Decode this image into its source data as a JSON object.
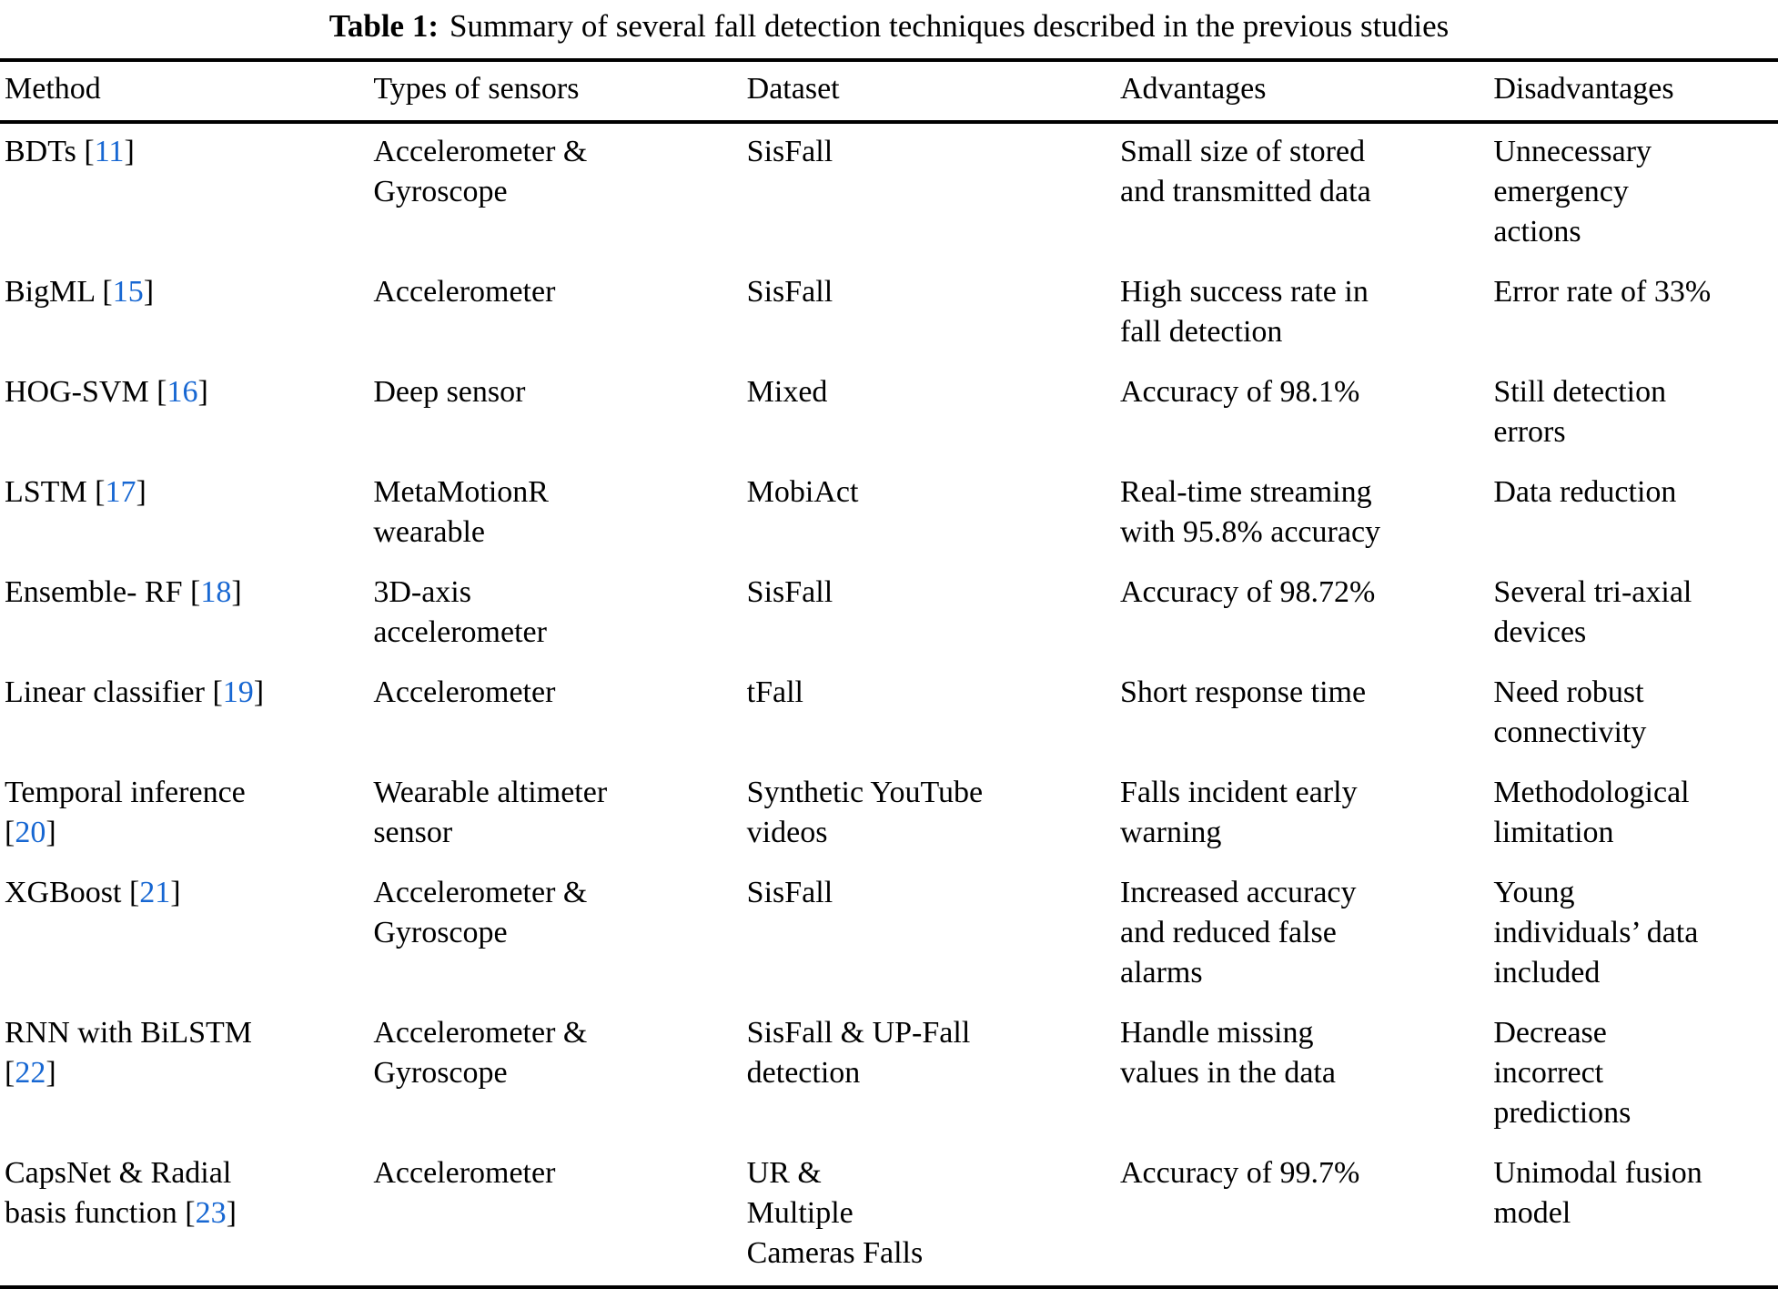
{
  "colors": {
    "citation_link": "#1767d2",
    "text": "#000000",
    "rule": "#000000",
    "background": "#ffffff"
  },
  "caption": {
    "label": "Table 1:",
    "text": "Summary of several fall detection techniques described in the previous studies"
  },
  "table": {
    "columns": [
      "Method",
      "Types of sensors",
      "Dataset",
      "Advantages",
      "Disadvantages"
    ],
    "rows": [
      {
        "method": "BDTs ",
        "ref": "11",
        "sensors": "Accelerometer &\nGyroscope",
        "dataset": "SisFall",
        "advantages": "Small size of stored\nand transmitted data",
        "disadvantages": "Unnecessary\nemergency\nactions"
      },
      {
        "method": "BigML ",
        "ref": "15",
        "sensors": "Accelerometer",
        "dataset": "SisFall",
        "advantages": "High success rate in\nfall detection",
        "disadvantages": "Error rate of 33%"
      },
      {
        "method": "HOG-SVM ",
        "ref": "16",
        "sensors": "Deep sensor",
        "dataset": "Mixed",
        "advantages": "Accuracy of 98.1%",
        "disadvantages": "Still detection\nerrors"
      },
      {
        "method": "LSTM ",
        "ref": "17",
        "sensors": "MetaMotionR\nwearable",
        "dataset": "MobiAct",
        "advantages": "Real-time streaming\nwith 95.8% accuracy",
        "disadvantages": "Data reduction"
      },
      {
        "method": "Ensemble- RF ",
        "ref": "18",
        "sensors": "3D-axis\naccelerometer",
        "dataset": "SisFall",
        "advantages": "Accuracy of 98.72%",
        "disadvantages": "Several tri-axial\ndevices"
      },
      {
        "method": "Linear classifier ",
        "ref": "19",
        "sensors": "Accelerometer",
        "dataset": "tFall",
        "advantages": "Short response time",
        "disadvantages": "Need robust\nconnectivity"
      },
      {
        "method": "Temporal inference\n",
        "ref": "20",
        "sensors": "Wearable altimeter\nsensor",
        "dataset": "Synthetic YouTube\nvideos",
        "advantages": "Falls incident early\nwarning",
        "disadvantages": "Methodological\nlimitation"
      },
      {
        "method": "XGBoost ",
        "ref": "21",
        "sensors": "Accelerometer &\nGyroscope",
        "dataset": "SisFall",
        "advantages": "Increased accuracy\nand reduced false\nalarms",
        "disadvantages": "Young\nindividuals’ data\nincluded"
      },
      {
        "method": "RNN with BiLSTM\n",
        "ref": "22",
        "sensors": "Accelerometer &\nGyroscope",
        "dataset": "SisFall & UP-Fall\ndetection",
        "advantages": "Handle missing\nvalues in the data",
        "disadvantages": "Decrease\nincorrect\npredictions"
      },
      {
        "method": "CapsNet & Radial\nbasis function ",
        "ref": "23",
        "sensors": "Accelerometer",
        "dataset": "UR &\nMultiple\nCameras Falls",
        "advantages": "Accuracy of 99.7%",
        "disadvantages": "Unimodal fusion\nmodel"
      }
    ]
  }
}
